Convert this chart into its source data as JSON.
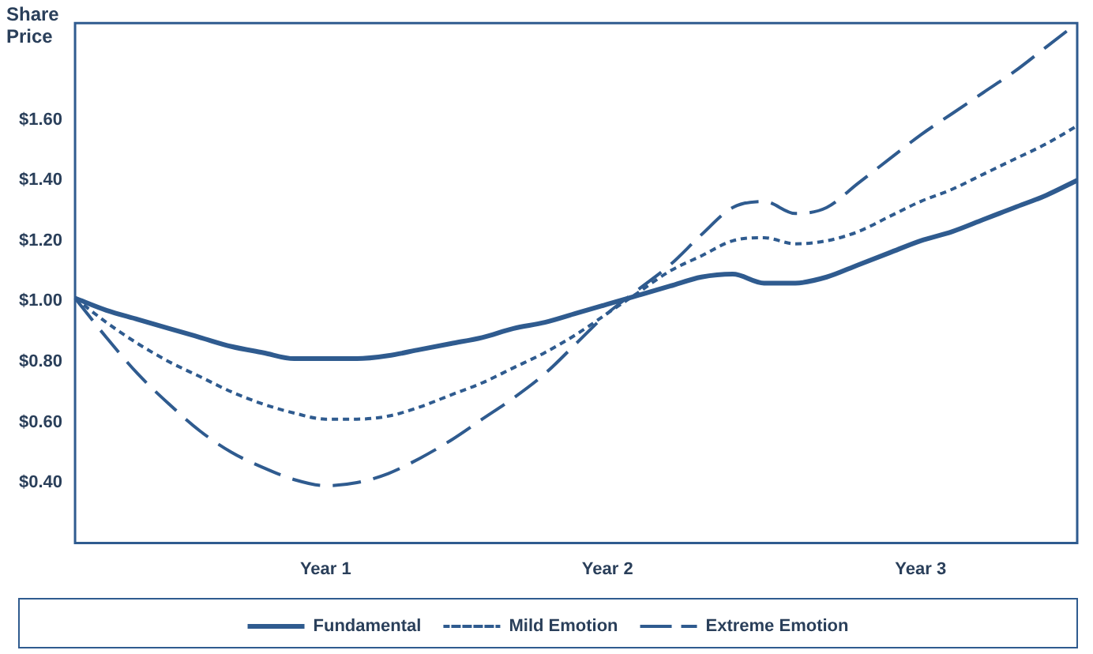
{
  "chart_data": {
    "type": "line",
    "ylabel": "Share Price",
    "categories": [
      null,
      null,
      null,
      null,
      null,
      null,
      null,
      null,
      "Year 1",
      null,
      null,
      null,
      null,
      null,
      null,
      null,
      null,
      "Year 2",
      null,
      null,
      null,
      null,
      null,
      null,
      null,
      null,
      null,
      "Year 3",
      null,
      null,
      null,
      null,
      null
    ],
    "ylim": [
      0.2,
      1.92
    ],
    "yticks": [
      {
        "value": 0.4,
        "label": "$0.40"
      },
      {
        "value": 0.6,
        "label": "$0.60"
      },
      {
        "value": 0.8,
        "label": "$0.80"
      },
      {
        "value": 1.0,
        "label": "$1.00"
      },
      {
        "value": 1.2,
        "label": "$1.20"
      },
      {
        "value": 1.4,
        "label": "$1.40"
      },
      {
        "value": 1.6,
        "label": "$1.60"
      }
    ],
    "grid": false,
    "legend": "bottom",
    "marker": "none",
    "series": [
      {
        "name": "Fundamental",
        "color": "#2f5b8f",
        "line_style": "solid",
        "values": [
          1.01,
          0.97,
          0.94,
          0.91,
          0.88,
          0.85,
          0.83,
          0.81,
          0.81,
          0.81,
          0.82,
          0.84,
          0.86,
          0.88,
          0.91,
          0.93,
          0.96,
          0.99,
          1.02,
          1.05,
          1.08,
          1.09,
          1.06,
          1.06,
          1.08,
          1.12,
          1.16,
          1.2,
          1.23,
          1.27,
          1.31,
          1.35,
          1.4
        ]
      },
      {
        "name": "Mild Emotion",
        "color": "#2f5b8f",
        "line_style": "dotted",
        "values": [
          1.01,
          0.93,
          0.86,
          0.8,
          0.75,
          0.7,
          0.66,
          0.63,
          0.61,
          0.61,
          0.62,
          0.65,
          0.69,
          0.73,
          0.78,
          0.83,
          0.89,
          0.96,
          1.03,
          1.1,
          1.15,
          1.2,
          1.21,
          1.19,
          1.2,
          1.23,
          1.28,
          1.33,
          1.37,
          1.42,
          1.47,
          1.52,
          1.58
        ]
      },
      {
        "name": "Extreme Emotion",
        "color": "#2f5b8f",
        "line_style": "dashed",
        "values": [
          1.01,
          0.88,
          0.76,
          0.66,
          0.57,
          0.5,
          0.45,
          0.41,
          0.39,
          0.4,
          0.43,
          0.48,
          0.54,
          0.61,
          0.68,
          0.76,
          0.86,
          0.96,
          1.04,
          1.12,
          1.22,
          1.31,
          1.33,
          1.29,
          1.31,
          1.39,
          1.47,
          1.55,
          1.62,
          1.69,
          1.76,
          1.84,
          1.92
        ]
      }
    ]
  }
}
